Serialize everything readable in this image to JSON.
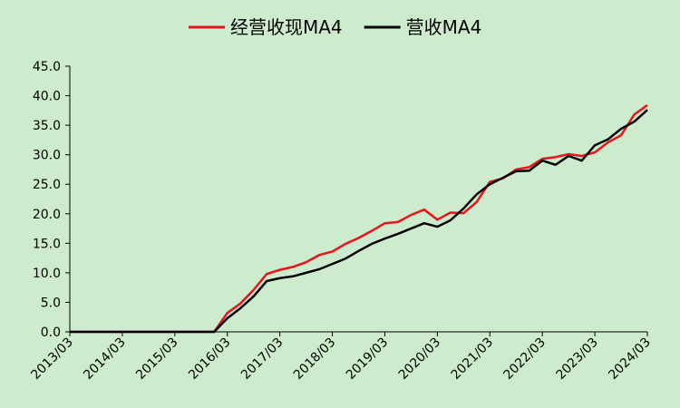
{
  "chart_data": {
    "type": "line",
    "categories": [
      "2013/03",
      null,
      null,
      null,
      "2014/03",
      null,
      null,
      null,
      "2015/03",
      null,
      null,
      null,
      "2016/03",
      null,
      null,
      null,
      "2017/03",
      null,
      null,
      null,
      "2018/03",
      null,
      null,
      null,
      "2019/03",
      null,
      null,
      null,
      "2020/03",
      null,
      null,
      null,
      "2021/03",
      null,
      null,
      null,
      "2022/03",
      null,
      null,
      null,
      "2023/03",
      null,
      null,
      null,
      "2024/03"
    ],
    "series": [
      {
        "name": "经营收现MA4",
        "color": "#e8141a",
        "values": [
          0,
          0,
          0,
          0,
          0,
          0,
          0,
          0,
          0,
          0,
          0,
          0,
          3.2,
          4.8,
          7.1,
          9.8,
          10.5,
          11.0,
          11.8,
          13.0,
          13.6,
          14.9,
          15.9,
          17.1,
          18.4,
          18.6,
          19.8,
          20.7,
          19.0,
          20.2,
          20.1,
          22.0,
          25.4,
          26.0,
          27.5,
          27.9,
          29.3,
          29.6,
          30.1,
          29.8,
          30.4,
          32.1,
          33.3,
          36.8,
          38.4
        ]
      },
      {
        "name": "营收MA4",
        "color": "#000000",
        "values": [
          0,
          0,
          0,
          0,
          0,
          0,
          0,
          0,
          0,
          0,
          0,
          0,
          2.3,
          4.0,
          6.0,
          8.6,
          9.1,
          9.4,
          10.0,
          10.6,
          11.5,
          12.4,
          13.7,
          14.9,
          15.8,
          16.6,
          17.5,
          18.4,
          17.8,
          18.9,
          20.9,
          23.3,
          25.0,
          26.1,
          27.2,
          27.3,
          29.0,
          28.3,
          29.8,
          29.0,
          31.6,
          32.6,
          34.4,
          35.6,
          37.6
        ]
      }
    ],
    "ylim": [
      0,
      45
    ],
    "yticks": [
      {
        "value": 0,
        "label": "0.0"
      },
      {
        "value": 5,
        "label": "5.0"
      },
      {
        "value": 10,
        "label": "10.0"
      },
      {
        "value": 15,
        "label": "15.0"
      },
      {
        "value": 20,
        "label": "20.0"
      },
      {
        "value": 25,
        "label": "25.0"
      },
      {
        "value": 30,
        "label": "30.0"
      },
      {
        "value": 35,
        "label": "35.0"
      },
      {
        "value": 40,
        "label": "40.0"
      },
      {
        "value": 45,
        "label": "45.0"
      }
    ],
    "legend": "top"
  }
}
